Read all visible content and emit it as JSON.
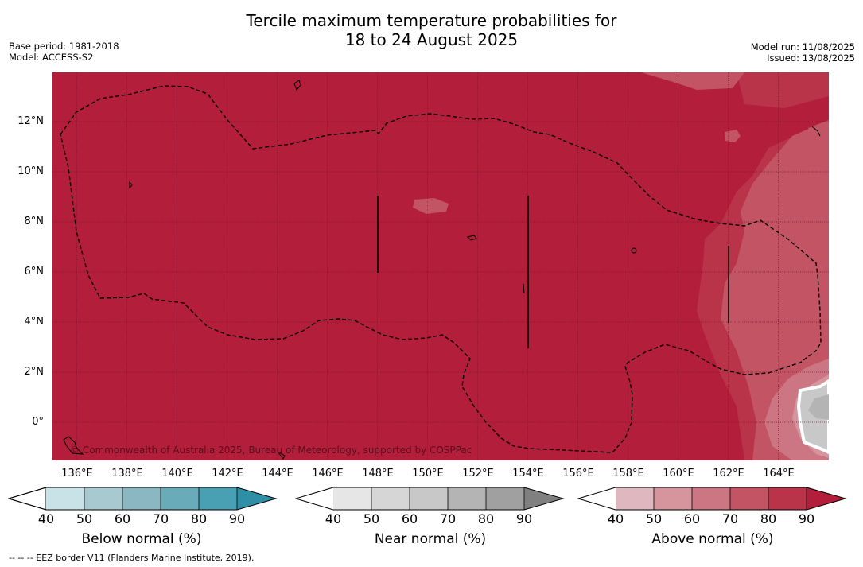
{
  "title_line1": "Tercile maximum temperature probabilities for",
  "title_line2": "18 to 24 August 2025",
  "meta_left": {
    "base_period": "Base period: 1981-2018",
    "model": "Model: ACCESS-S2"
  },
  "meta_right": {
    "model_run": "Model run: 11/08/2025",
    "issued": "Issued: 13/08/2025"
  },
  "map": {
    "background_color": "#b31e3a",
    "lat_labels": [
      "12°N",
      "10°N",
      "8°N",
      "6°N",
      "4°N",
      "2°N",
      "0°"
    ],
    "lon_labels": [
      "136°E",
      "138°E",
      "140°E",
      "142°E",
      "144°E",
      "146°E",
      "148°E",
      "150°E",
      "152°E",
      "154°E",
      "156°E",
      "158°E",
      "160°E",
      "162°E",
      "164°E"
    ],
    "copyright": "© Commonwealth of Australia 2025, Bureau of Meteorology, supported by COSPPac"
  },
  "colorbars": [
    {
      "label": "Below normal (%)",
      "ticks": [
        "40",
        "50",
        "60",
        "70",
        "80",
        "90"
      ],
      "colors": [
        "#c9e2e8",
        "#a7c9cf",
        "#8ab7c1",
        "#6aabb9",
        "#48a0b2",
        "#2f8fa6"
      ]
    },
    {
      "label": "Near normal (%)",
      "ticks": [
        "40",
        "50",
        "60",
        "70",
        "80",
        "90"
      ],
      "colors": [
        "#e6e6e6",
        "#d6d6d6",
        "#c8c8c8",
        "#b4b4b4",
        "#a0a0a0",
        "#808080"
      ]
    },
    {
      "label": "Above normal (%)",
      "ticks": [
        "40",
        "50",
        "60",
        "70",
        "80",
        "90"
      ],
      "colors": [
        "#dfb8bf",
        "#d6949d",
        "#cc7683",
        "#c25464",
        "#b93448",
        "#b31e3a"
      ]
    }
  ],
  "footnote": "--  --  -- EEZ border V11 (Flanders Marine Institute, 2019)."
}
